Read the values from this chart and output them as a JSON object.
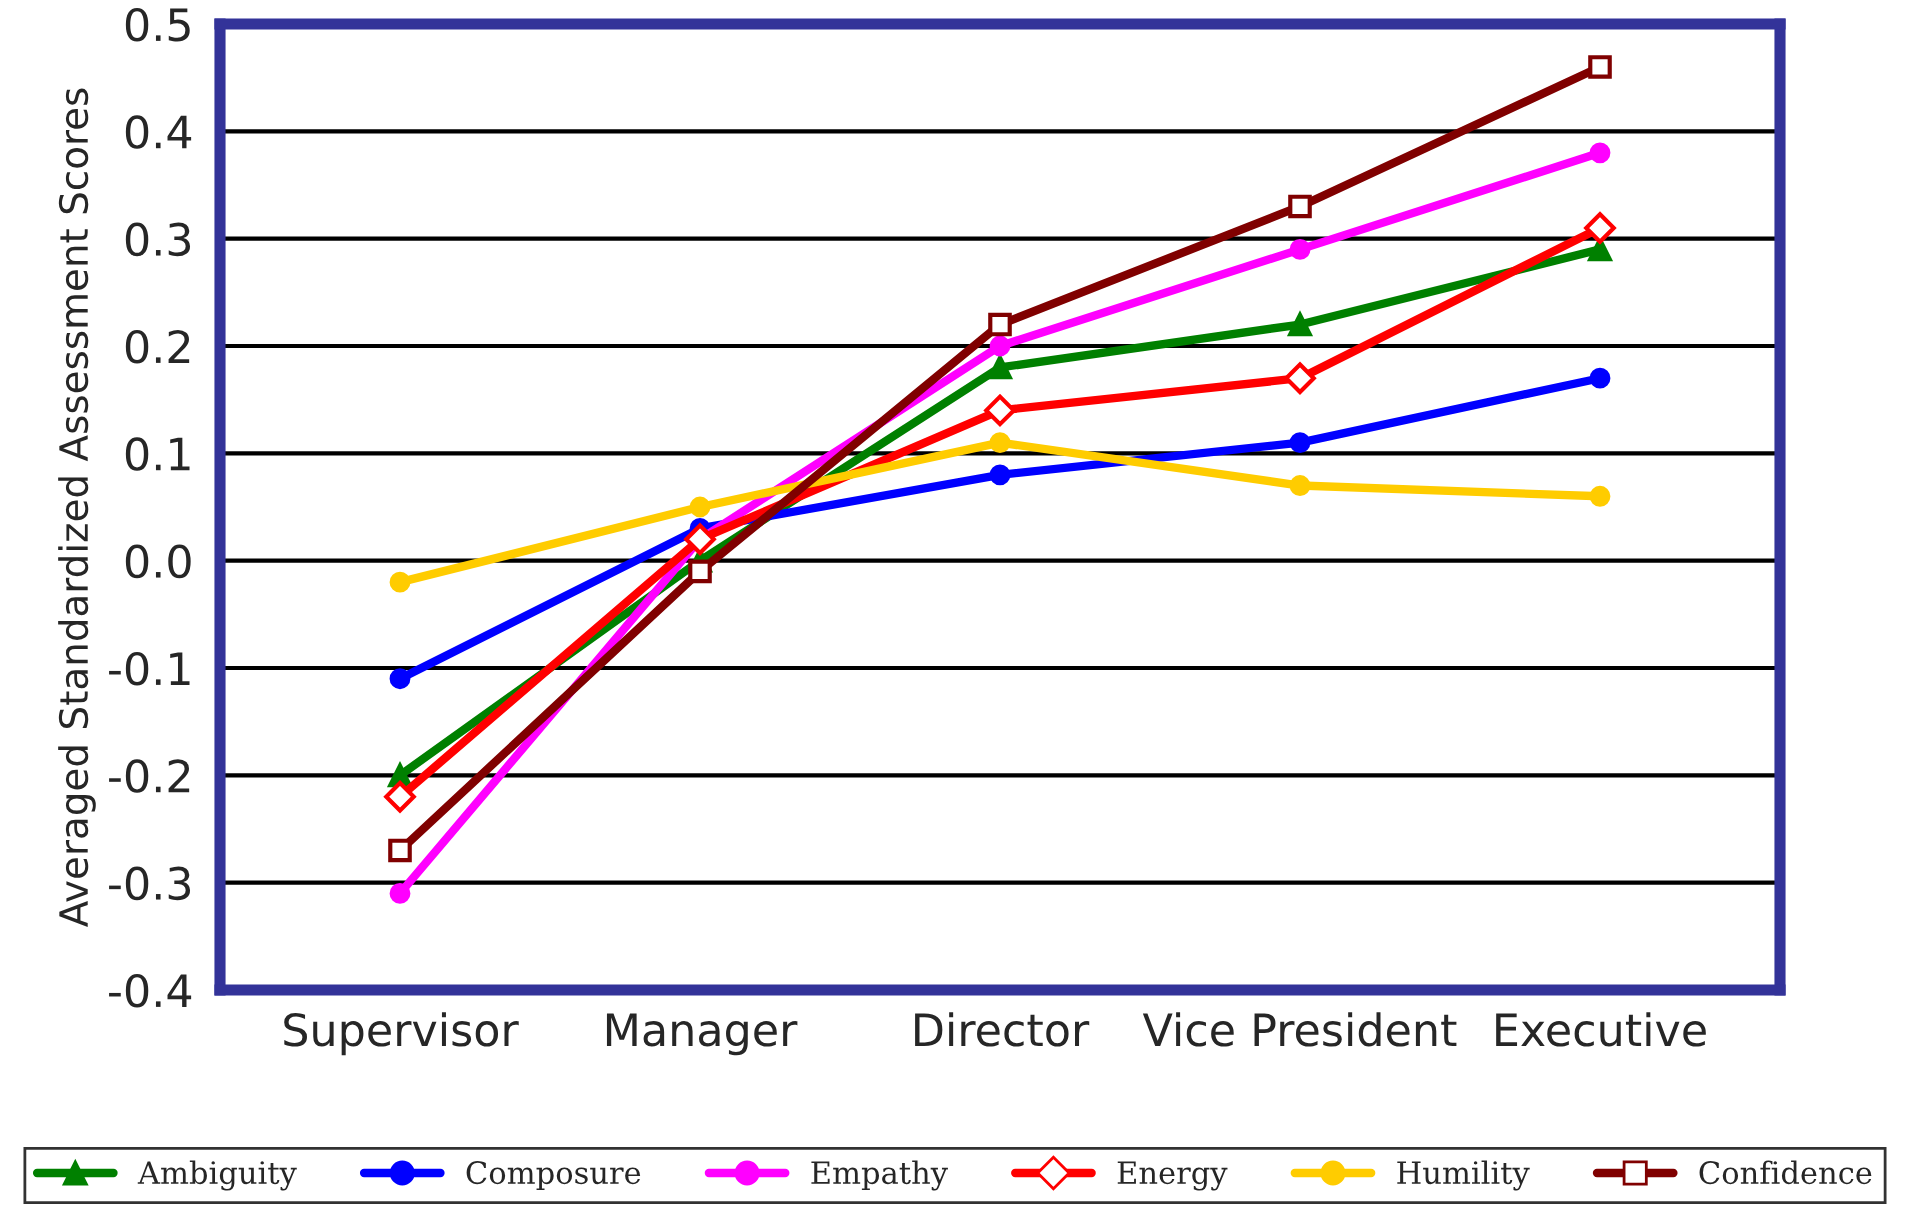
{
  "chart_data": {
    "type": "line",
    "ylabel": "Averaged Standardized Assessment Scores",
    "categories": [
      "Supervisor",
      "Manager",
      "Director",
      "Vice President",
      "Executive"
    ],
    "series": [
      {
        "name": "Ambiguity",
        "color": "#008000",
        "marker": "triangle",
        "values": [
          -0.2,
          0.0,
          0.18,
          0.22,
          0.29
        ]
      },
      {
        "name": "Composure",
        "color": "#0000ff",
        "marker": "circle",
        "values": [
          -0.11,
          0.03,
          0.08,
          0.11,
          0.17
        ]
      },
      {
        "name": "Empathy",
        "color": "#ff00ff",
        "marker": "circle",
        "values": [
          -0.31,
          0.02,
          0.2,
          0.29,
          0.38
        ]
      },
      {
        "name": "Energy",
        "color": "#ff0000",
        "marker": "diamond",
        "values": [
          -0.22,
          0.02,
          0.14,
          0.17,
          0.31
        ]
      },
      {
        "name": "Humility",
        "color": "#ffcc00",
        "marker": "circle",
        "values": [
          -0.02,
          0.05,
          0.11,
          0.07,
          0.06
        ]
      },
      {
        "name": "Confidence",
        "color": "#800000",
        "marker": "square",
        "values": [
          -0.27,
          -0.01,
          0.22,
          0.33,
          0.46
        ]
      }
    ],
    "ylim": [
      -0.4,
      0.5
    ],
    "yticks": [
      -0.4,
      -0.3,
      -0.2,
      -0.1,
      {
        "value": 0,
        "label": "0.0"
      },
      0.1,
      0.2,
      0.3,
      0.4,
      0.5
    ],
    "grid": "y",
    "legend": "bottom",
    "line_style": "solid"
  }
}
